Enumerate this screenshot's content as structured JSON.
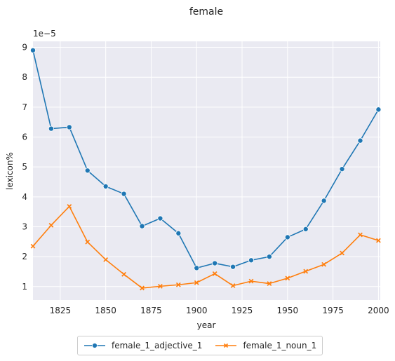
{
  "chart_data": {
    "type": "line",
    "title": "female",
    "xlabel": "year",
    "ylabel": "lexicon%",
    "y_offset_label": "1e−5",
    "xlim": [
      1810,
      2001
    ],
    "ylim": [
      0.55,
      9.2
    ],
    "x_ticks": [
      1825,
      1850,
      1875,
      1900,
      1925,
      1950,
      1975,
      2000
    ],
    "y_ticks": [
      1,
      2,
      3,
      4,
      5,
      6,
      7,
      8,
      9
    ],
    "grid": true,
    "legend_position": "bottom-center",
    "x": [
      1810,
      1820,
      1830,
      1840,
      1850,
      1860,
      1870,
      1880,
      1890,
      1900,
      1910,
      1920,
      1930,
      1940,
      1950,
      1960,
      1970,
      1980,
      1990,
      2000
    ],
    "series": [
      {
        "name": "female_1_adjective_1",
        "color": "#1f77b4",
        "marker": "circle",
        "values": [
          8.9,
          6.28,
          6.33,
          4.88,
          4.35,
          4.1,
          3.02,
          3.28,
          2.78,
          1.62,
          1.78,
          1.66,
          1.88,
          2.0,
          2.65,
          2.92,
          3.87,
          4.93,
          5.88,
          6.92
        ]
      },
      {
        "name": "female_1_noun_1",
        "color": "#ff7f0e",
        "marker": "x",
        "values": [
          2.35,
          3.05,
          3.68,
          2.49,
          1.9,
          1.41,
          0.95,
          1.01,
          1.06,
          1.13,
          1.43,
          1.03,
          1.18,
          1.1,
          1.28,
          1.51,
          1.74,
          2.12,
          2.73,
          2.54
        ]
      }
    ]
  }
}
